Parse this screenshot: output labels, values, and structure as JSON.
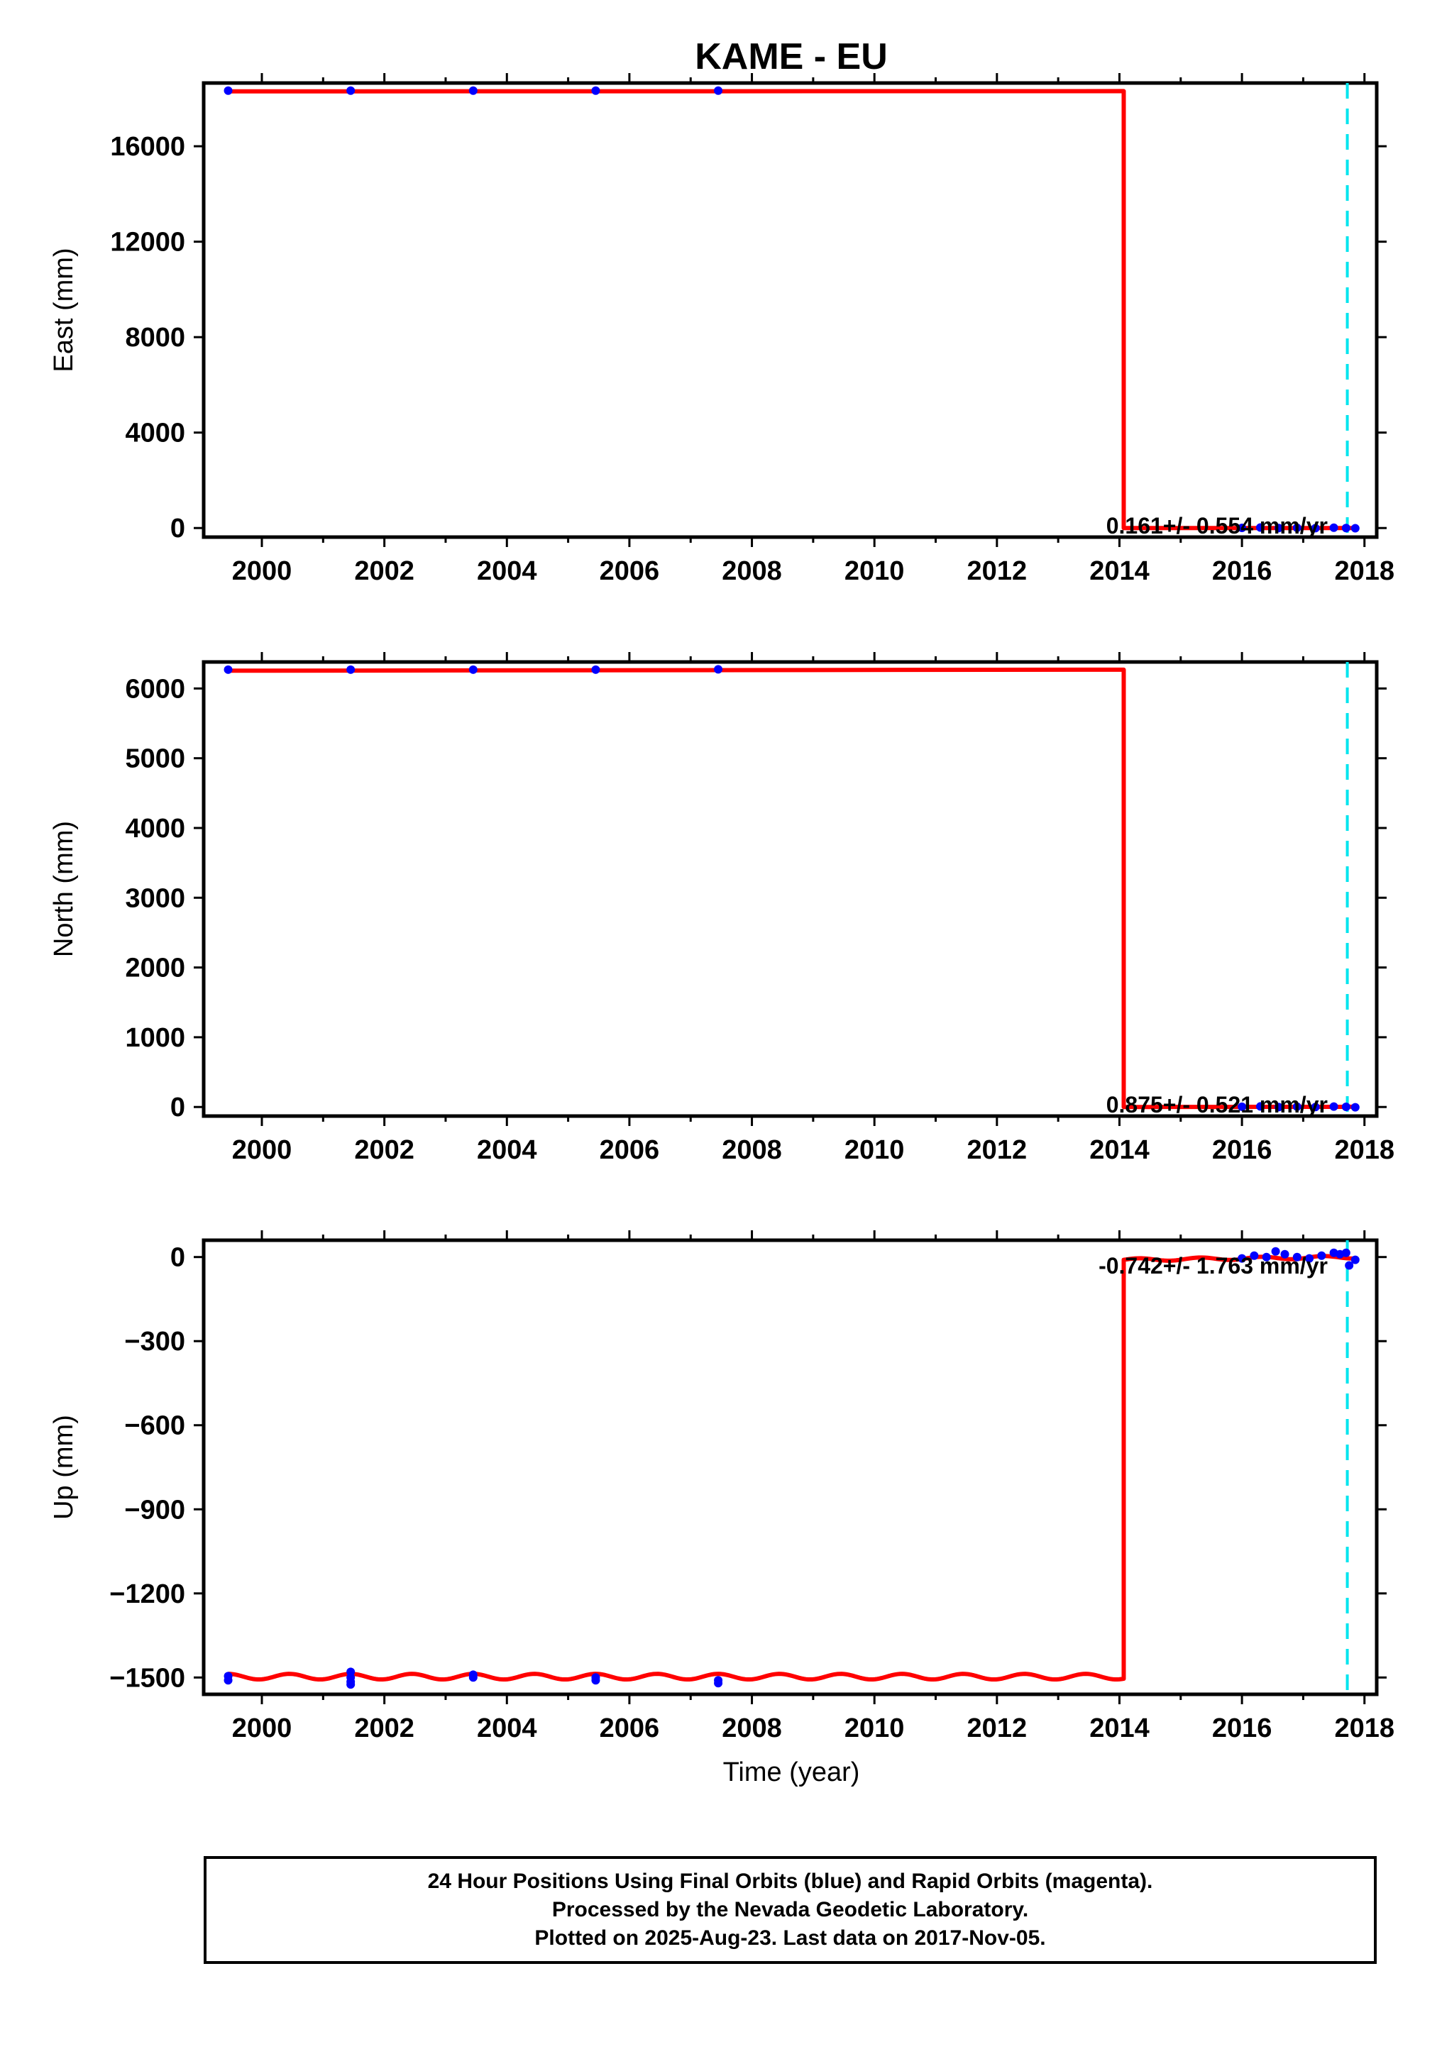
{
  "figure": {
    "title": "KAME - EU",
    "xlabel": "Time (year)"
  },
  "colors": {
    "final_orbit_points": "#0000ff",
    "rapid_orbit_points": "#ff00ff",
    "model_fit": "#ff0000",
    "equipment_change_line": "#00e5ee",
    "axis": "#000000"
  },
  "chart_data": [
    {
      "type": "scatter",
      "panel": "east",
      "ylabel": "East (mm)",
      "xlim": [
        1999.05,
        2018.2
      ],
      "ylim": [
        -380,
        18650
      ],
      "x_ticks": [
        2000,
        2002,
        2004,
        2006,
        2008,
        2010,
        2012,
        2014,
        2016,
        2018
      ],
      "y_ticks": [
        0,
        4000,
        8000,
        12000,
        16000
      ],
      "y_tick_labels": [
        "0",
        "4000",
        "8000",
        "12000",
        "16000"
      ],
      "annotation": "0.161+/- 0.554 mm/yr",
      "vertical_reference_line_x": 2017.72,
      "step_x": 2014.07,
      "series": [
        {
          "color": "blue",
          "x": [
            1999.45,
            2001.45,
            2003.45,
            2005.45,
            2007.45,
            2016.0,
            2016.3,
            2016.6,
            2016.9,
            2017.2,
            2017.5,
            2017.7,
            2017.85
          ],
          "y": [
            18330,
            18330,
            18330,
            18330,
            18330,
            5,
            20,
            0,
            10,
            -5,
            15,
            0,
            -10
          ]
        }
      ],
      "model": {
        "before_step": {
          "x": [
            1999.45,
            2014.07
          ],
          "y": [
            18300,
            18310
          ]
        },
        "after_step": {
          "x": [
            2014.07,
            2017.85
          ],
          "y": [
            0,
            0.6
          ]
        }
      }
    },
    {
      "type": "scatter",
      "panel": "north",
      "ylabel": "North (mm)",
      "xlim": [
        1999.05,
        2018.2
      ],
      "ylim": [
        -130,
        6380
      ],
      "x_ticks": [
        2000,
        2002,
        2004,
        2006,
        2008,
        2010,
        2012,
        2014,
        2016,
        2018
      ],
      "y_ticks": [
        0,
        1000,
        2000,
        3000,
        4000,
        5000,
        6000
      ],
      "y_tick_labels": [
        "0",
        "1000",
        "2000",
        "3000",
        "4000",
        "5000",
        "6000"
      ],
      "annotation": "0.875+/- 0.521 mm/yr",
      "vertical_reference_line_x": 2017.72,
      "step_x": 2014.07,
      "series": [
        {
          "color": "blue",
          "x": [
            1999.45,
            2001.45,
            2003.45,
            2005.45,
            2007.45,
            2016.0,
            2016.3,
            2016.6,
            2016.9,
            2017.2,
            2017.5,
            2017.7,
            2017.85
          ],
          "y": [
            6270,
            6270,
            6270,
            6270,
            6275,
            3,
            8,
            -2,
            5,
            0,
            6,
            2,
            -4
          ]
        }
      ],
      "model": {
        "before_step": {
          "x": [
            1999.45,
            2014.07
          ],
          "y": [
            6255,
            6270
          ]
        },
        "after_step": {
          "x": [
            2014.07,
            2017.85
          ],
          "y": [
            0,
            3
          ]
        }
      }
    },
    {
      "type": "scatter",
      "panel": "up",
      "ylabel": "Up (mm)",
      "xlim": [
        1999.05,
        2018.2
      ],
      "ylim": [
        -1560,
        60
      ],
      "x_ticks": [
        2000,
        2002,
        2004,
        2006,
        2008,
        2010,
        2012,
        2014,
        2016,
        2018
      ],
      "y_ticks": [
        -1500,
        -1200,
        -900,
        -600,
        -300,
        0
      ],
      "y_tick_labels": [
        "−1500",
        "−1200",
        "−900",
        "−600",
        "−300",
        "0"
      ],
      "annotation": "-0.742+/- 1.763 mm/yr",
      "vertical_reference_line_x": 2017.72,
      "step_x": 2014.07,
      "series": [
        {
          "color": "blue",
          "x": [
            1999.45,
            1999.45,
            2001.45,
            2001.45,
            2001.45,
            2001.45,
            2003.45,
            2003.45,
            2005.45,
            2005.45,
            2007.45,
            2007.45,
            2016.0,
            2016.2,
            2016.4,
            2016.55,
            2016.7,
            2016.9,
            2017.1,
            2017.3,
            2017.5,
            2017.6,
            2017.7,
            2017.75,
            2017.85
          ],
          "y": [
            -1495,
            -1510,
            -1480,
            -1500,
            -1515,
            -1525,
            -1490,
            -1500,
            -1500,
            -1510,
            -1510,
            -1520,
            -5,
            5,
            0,
            20,
            10,
            0,
            -5,
            5,
            15,
            10,
            15,
            -30,
            -10
          ]
        }
      ],
      "model": {
        "before_step": {
          "mean": -1497,
          "annual_amplitude": 10,
          "x": [
            1999.45,
            2014.07
          ]
        },
        "after_step": {
          "x": [
            2014.07,
            2017.85
          ],
          "y": [
            -10,
            0
          ],
          "annual_amplitude": 5
        }
      }
    }
  ],
  "footer": {
    "line1": "24 Hour Positions Using Final Orbits (blue) and Rapid Orbits (magenta).",
    "line2": "Processed by the Nevada Geodetic Laboratory.",
    "line3": "Plotted on 2025-Aug-23. Last data on 2017-Nov-05."
  }
}
